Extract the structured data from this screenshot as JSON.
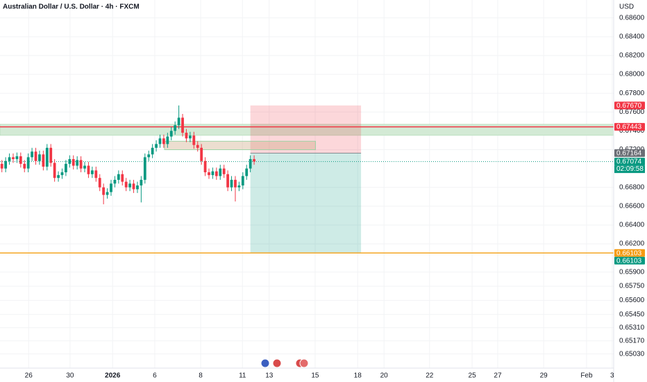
{
  "header": {
    "title": "Australian Dollar / U.S. Dollar · 4h · FXCM",
    "currency": "USD"
  },
  "chart_data": {
    "type": "candlestick",
    "x": [
      0,
      1,
      2,
      3,
      4,
      5,
      6,
      7,
      8,
      9,
      10,
      11,
      12,
      13,
      14,
      15,
      16,
      17,
      18,
      19,
      20,
      21,
      22,
      23,
      24,
      25,
      26,
      27,
      28,
      29,
      30,
      31,
      32,
      33,
      34,
      35,
      36,
      37,
      38,
      39,
      40,
      41,
      42,
      43,
      44,
      45,
      46,
      47,
      48,
      49,
      50,
      51,
      52,
      53,
      54,
      55,
      56,
      57,
      58,
      59,
      60,
      61,
      62,
      63,
      64,
      65,
      66,
      67
    ],
    "open": [
      0.6705,
      0.67,
      0.6708,
      0.6712,
      0.671,
      0.6713,
      0.6705,
      0.67,
      0.6712,
      0.6718,
      0.6708,
      0.6715,
      0.6702,
      0.6722,
      0.6706,
      0.669,
      0.6693,
      0.6696,
      0.6705,
      0.671,
      0.6703,
      0.6709,
      0.67,
      0.6703,
      0.6694,
      0.6698,
      0.669,
      0.668,
      0.6672,
      0.6675,
      0.6684,
      0.6688,
      0.6694,
      0.6686,
      0.668,
      0.6684,
      0.6678,
      0.6682,
      0.6688,
      0.6712,
      0.6715,
      0.6722,
      0.6726,
      0.6732,
      0.6726,
      0.6734,
      0.674,
      0.6746,
      0.6754,
      0.6738,
      0.6732,
      0.6735,
      0.6725,
      0.6722,
      0.6708,
      0.6696,
      0.6693,
      0.6697,
      0.6692,
      0.67,
      0.6694,
      0.668,
      0.6688,
      0.668,
      0.6682,
      0.6692,
      0.67,
      0.671
    ],
    "high": [
      0.6709,
      0.6712,
      0.6716,
      0.6716,
      0.6717,
      0.6717,
      0.6709,
      0.6716,
      0.6722,
      0.6722,
      0.6719,
      0.6719,
      0.6726,
      0.6726,
      0.671,
      0.6697,
      0.67,
      0.6709,
      0.6714,
      0.6714,
      0.6713,
      0.6713,
      0.6707,
      0.6707,
      0.6702,
      0.6702,
      0.6694,
      0.6684,
      0.6679,
      0.6688,
      0.6692,
      0.6698,
      0.6698,
      0.669,
      0.6688,
      0.6688,
      0.6686,
      0.6692,
      0.6716,
      0.6719,
      0.6726,
      0.673,
      0.6736,
      0.6736,
      0.6738,
      0.6744,
      0.675,
      0.6767,
      0.6758,
      0.6742,
      0.6739,
      0.6739,
      0.6729,
      0.6726,
      0.6712,
      0.67,
      0.6701,
      0.6701,
      0.6704,
      0.6704,
      0.6698,
      0.6692,
      0.6692,
      0.6686,
      0.6696,
      0.6704,
      0.6714,
      0.6714
    ],
    "low": [
      0.6696,
      0.6696,
      0.6704,
      0.6706,
      0.6706,
      0.6701,
      0.6696,
      0.6696,
      0.6708,
      0.6704,
      0.6704,
      0.6698,
      0.6698,
      0.6702,
      0.6686,
      0.6686,
      0.6689,
      0.6692,
      0.6701,
      0.6699,
      0.6699,
      0.6696,
      0.6696,
      0.669,
      0.669,
      0.6686,
      0.6676,
      0.6662,
      0.6668,
      0.6671,
      0.668,
      0.6684,
      0.6682,
      0.6676,
      0.6676,
      0.6674,
      0.6674,
      0.6664,
      0.6684,
      0.6708,
      0.6711,
      0.6718,
      0.6722,
      0.6722,
      0.6722,
      0.673,
      0.6736,
      0.6742,
      0.6734,
      0.6728,
      0.6728,
      0.6721,
      0.6718,
      0.6704,
      0.6692,
      0.6689,
      0.6689,
      0.6688,
      0.6688,
      0.669,
      0.6676,
      0.6676,
      0.6665,
      0.6676,
      0.6678,
      0.6688,
      0.6696,
      0.6704
    ],
    "close": [
      0.67,
      0.6708,
      0.6712,
      0.671,
      0.6713,
      0.6705,
      0.67,
      0.6712,
      0.6718,
      0.6708,
      0.6715,
      0.6702,
      0.6722,
      0.6706,
      0.669,
      0.6693,
      0.6696,
      0.6705,
      0.671,
      0.6703,
      0.6709,
      0.67,
      0.6703,
      0.6694,
      0.6698,
      0.669,
      0.668,
      0.6672,
      0.6675,
      0.6684,
      0.6688,
      0.6694,
      0.6686,
      0.668,
      0.6684,
      0.6678,
      0.6682,
      0.6688,
      0.6712,
      0.6715,
      0.6722,
      0.6726,
      0.6732,
      0.6726,
      0.6734,
      0.674,
      0.6746,
      0.6754,
      0.6738,
      0.6732,
      0.6735,
      0.6725,
      0.6722,
      0.6708,
      0.6696,
      0.6693,
      0.6697,
      0.6692,
      0.67,
      0.6694,
      0.668,
      0.6688,
      0.668,
      0.6682,
      0.6692,
      0.67,
      0.671,
      0.67074
    ],
    "up_color": "#089981",
    "down_color": "#f23645",
    "xlim": [
      -0.5,
      162.5
    ],
    "ylim": [
      0.6488,
      0.6879
    ],
    "grid": true,
    "xticks": [
      {
        "value": 7.1,
        "label": "26"
      },
      {
        "value": 18.1,
        "label": "30"
      },
      {
        "value": 29.4,
        "label": "2026"
      },
      {
        "value": 40.6,
        "label": "6"
      },
      {
        "value": 52.8,
        "label": "8"
      },
      {
        "value": 63.9,
        "label": "11"
      },
      {
        "value": 71.0,
        "label": "13"
      },
      {
        "value": 83.2,
        "label": "15"
      },
      {
        "value": 94.5,
        "label": "18"
      },
      {
        "value": 101.5,
        "label": "20"
      },
      {
        "value": 113.6,
        "label": "22"
      },
      {
        "value": 124.9,
        "label": "25"
      },
      {
        "value": 131.7,
        "label": "27"
      },
      {
        "value": 143.9,
        "label": "29"
      },
      {
        "value": 155.3,
        "label": "Feb"
      },
      {
        "value": 162.1,
        "label": "3"
      }
    ],
    "yticks": [
      {
        "value": 0.686,
        "label": "0.68600"
      },
      {
        "value": 0.684,
        "label": "0.68400"
      },
      {
        "value": 0.682,
        "label": "0.68200"
      },
      {
        "value": 0.68,
        "label": "0.68000"
      },
      {
        "value": 0.678,
        "label": "0.67800"
      },
      {
        "value": 0.676,
        "label": "0.67600"
      },
      {
        "value": 0.674,
        "label": "0.67400"
      },
      {
        "value": 0.672,
        "label": "0.67200"
      },
      {
        "value": 0.668,
        "label": "0.66800"
      },
      {
        "value": 0.666,
        "label": "0.66600"
      },
      {
        "value": 0.664,
        "label": "0.66400"
      },
      {
        "value": 0.662,
        "label": "0.66200"
      },
      {
        "value": 0.659,
        "label": "0.65900"
      },
      {
        "value": 0.6575,
        "label": "0.65750"
      },
      {
        "value": 0.656,
        "label": "0.65600"
      },
      {
        "value": 0.6545,
        "label": "0.65450"
      },
      {
        "value": 0.6531,
        "label": "0.65310"
      },
      {
        "value": 0.6517,
        "label": "0.65170"
      },
      {
        "value": 0.6503,
        "label": "0.65030"
      }
    ],
    "zone": {
      "from": 0.67352,
      "to": 0.6747,
      "color": "#d3ead5"
    },
    "box": {
      "x": [
        43.2,
        83.3
      ],
      "from": 0.672,
      "to": 0.6729
    },
    "levels": [
      {
        "value": 0.67443,
        "color": "#f23645"
      },
      {
        "value": 0.66103,
        "color": "#f5a623"
      }
    ],
    "position": {
      "x": [
        66.0,
        95.4
      ],
      "stop": 0.6767,
      "entry": 0.67164,
      "target": 0.66103
    },
    "price_labels": [
      {
        "value": 0.6767,
        "label": "0.67670",
        "color": "#f23645"
      },
      {
        "value": 0.67443,
        "label": "0.67443",
        "color": "#f23645"
      },
      {
        "value": 0.67164,
        "label": "0.67164",
        "color": "#6b6e75"
      },
      {
        "value": 0.67074,
        "label": "0.67074",
        "color": "#089981"
      },
      {
        "value": 0.66103,
        "label": "0.66103",
        "color": "#f59b12"
      },
      {
        "value": 0.66103,
        "label": "0.66103",
        "color": "#089981"
      }
    ],
    "countdown": "02:09:58"
  }
}
